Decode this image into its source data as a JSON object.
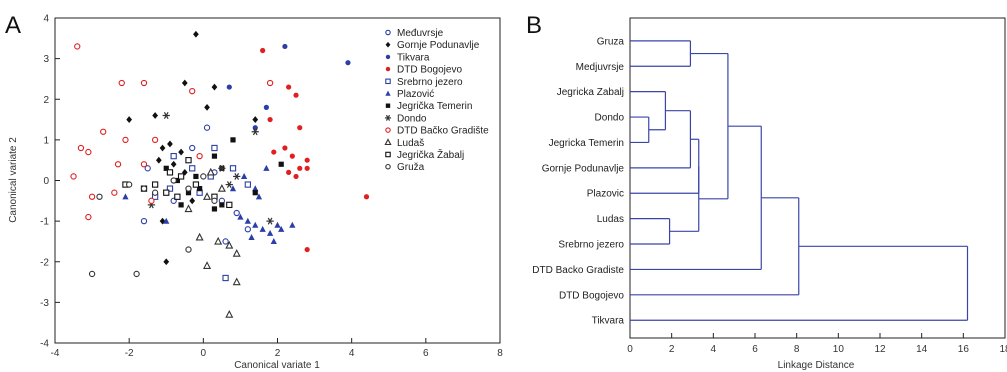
{
  "figure": {
    "panel_a_letter": "A",
    "panel_b_letter": "B"
  },
  "chart_data": [
    {
      "type": "scatter",
      "panel": "A",
      "xlabel": "Canonical variate 1",
      "ylabel": "Canonical variate 2",
      "xlim": [
        -4,
        8
      ],
      "ylim": [
        -4,
        4
      ],
      "xticks": [
        -4,
        -2,
        0,
        2,
        4,
        6,
        8
      ],
      "yticks": [
        -4,
        -3,
        -2,
        -1,
        0,
        1,
        2,
        3,
        4
      ],
      "grid": false,
      "legend_position": "top-right",
      "series": [
        {
          "name": "Međuvrsje",
          "color": "#2b3fa8",
          "marker": "circle-open",
          "points": [
            [
              -1.6,
              -1.0
            ],
            [
              -1.5,
              0.3
            ],
            [
              -0.3,
              0.8
            ],
            [
              0.1,
              1.3
            ],
            [
              0.6,
              -1.5
            ],
            [
              0.9,
              -0.8
            ],
            [
              0.5,
              -0.5
            ],
            [
              1.2,
              -1.2
            ],
            [
              -0.8,
              -0.5
            ],
            [
              0.3,
              0.2
            ]
          ]
        },
        {
          "name": "Gornje Podunavlje",
          "color": "#111111",
          "marker": "diamond",
          "points": [
            [
              -0.2,
              3.6
            ],
            [
              -1.3,
              1.6
            ],
            [
              -0.5,
              2.4
            ],
            [
              0.3,
              2.3
            ],
            [
              -2.0,
              1.5
            ],
            [
              0.1,
              1.8
            ],
            [
              1.4,
              1.5
            ],
            [
              -1.1,
              0.8
            ],
            [
              -1.2,
              0.5
            ],
            [
              -0.9,
              0.9
            ],
            [
              -0.6,
              0.7
            ],
            [
              -0.8,
              0.4
            ],
            [
              -1.1,
              -1.0
            ],
            [
              -1.0,
              -2.0
            ],
            [
              -0.5,
              0.2
            ],
            [
              -0.3,
              -0.5
            ]
          ]
        },
        {
          "name": "Tikvara",
          "color": "#2b3fa8",
          "marker": "circle-filled",
          "points": [
            [
              2.2,
              3.3
            ],
            [
              3.9,
              2.9
            ],
            [
              0.7,
              2.3
            ],
            [
              1.7,
              1.8
            ],
            [
              1.4,
              1.3
            ]
          ]
        },
        {
          "name": "DTD Bogojevo",
          "color": "#e02020",
          "marker": "circle-filled",
          "points": [
            [
              1.6,
              3.2
            ],
            [
              2.3,
              2.3
            ],
            [
              2.5,
              2.1
            ],
            [
              1.8,
              1.5
            ],
            [
              2.6,
              1.3
            ],
            [
              2.2,
              0.8
            ],
            [
              2.4,
              0.6
            ],
            [
              2.6,
              0.3
            ],
            [
              2.8,
              0.5
            ],
            [
              2.5,
              0.1
            ],
            [
              2.8,
              0.3
            ],
            [
              2.3,
              0.2
            ],
            [
              4.4,
              -0.4
            ],
            [
              2.8,
              -1.7
            ],
            [
              1.9,
              0.7
            ]
          ]
        },
        {
          "name": "Srebrno jezero",
          "color": "#2b3fa8",
          "marker": "square-open",
          "points": [
            [
              -0.8,
              0.6
            ],
            [
              -0.3,
              0.3
            ],
            [
              0.2,
              0.1
            ],
            [
              -0.9,
              -0.2
            ],
            [
              0.6,
              -2.4
            ],
            [
              0.3,
              0.8
            ],
            [
              -0.1,
              -0.3
            ],
            [
              0.8,
              0.3
            ],
            [
              1.2,
              -0.1
            ],
            [
              -1.3,
              -0.4
            ]
          ]
        },
        {
          "name": "Plazović",
          "color": "#2b3fa8",
          "marker": "triangle-filled",
          "points": [
            [
              1.0,
              -0.9
            ],
            [
              1.2,
              -1.0
            ],
            [
              1.4,
              -1.1
            ],
            [
              1.6,
              -1.2
            ],
            [
              1.8,
              -1.3
            ],
            [
              2.0,
              -1.1
            ],
            [
              1.5,
              -0.4
            ],
            [
              1.9,
              -1.5
            ],
            [
              2.1,
              -1.2
            ],
            [
              1.3,
              -1.4
            ],
            [
              1.1,
              0.1
            ],
            [
              1.4,
              -0.2
            ],
            [
              1.7,
              0.3
            ],
            [
              0.8,
              -0.2
            ],
            [
              -2.1,
              -0.4
            ],
            [
              2.4,
              -1.1
            ],
            [
              -1.0,
              -1.0
            ]
          ]
        },
        {
          "name": "Jegrička Temerin",
          "color": "#111111",
          "marker": "square-filled",
          "points": [
            [
              -1.0,
              0.3
            ],
            [
              -0.7,
              0.0
            ],
            [
              -0.4,
              -0.3
            ],
            [
              0.3,
              0.6
            ],
            [
              0.5,
              0.3
            ],
            [
              0.8,
              1.0
            ],
            [
              0.3,
              -0.7
            ],
            [
              -0.1,
              -0.2
            ],
            [
              -0.6,
              -0.6
            ],
            [
              2.1,
              0.4
            ],
            [
              1.4,
              -0.3
            ],
            [
              0.5,
              -0.6
            ],
            [
              -0.2,
              0.1
            ]
          ]
        },
        {
          "name": "Dondo",
          "color": "#333333",
          "marker": "asterisk",
          "points": [
            [
              -1.0,
              1.6
            ],
            [
              1.4,
              1.2
            ],
            [
              0.5,
              0.3
            ],
            [
              -1.4,
              -0.6
            ],
            [
              1.8,
              -1.0
            ],
            [
              0.9,
              0.1
            ],
            [
              0.7,
              -0.1
            ]
          ]
        },
        {
          "name": "DTD Bačko Gradište",
          "color": "#e02020",
          "marker": "circle-open",
          "points": [
            [
              -3.4,
              3.3
            ],
            [
              -2.2,
              2.4
            ],
            [
              -1.6,
              2.4
            ],
            [
              -0.3,
              2.2
            ],
            [
              1.8,
              2.4
            ],
            [
              -2.7,
              1.2
            ],
            [
              -2.1,
              1.0
            ],
            [
              -1.3,
              1.0
            ],
            [
              -3.3,
              0.8
            ],
            [
              -3.1,
              0.7
            ],
            [
              -2.3,
              0.4
            ],
            [
              -1.6,
              0.4
            ],
            [
              -3.5,
              0.1
            ],
            [
              -3.0,
              -0.4
            ],
            [
              -3.1,
              -0.9
            ],
            [
              -2.4,
              -0.3
            ],
            [
              -1.4,
              -0.5
            ],
            [
              -0.1,
              0.6
            ]
          ]
        },
        {
          "name": "Ludaš",
          "color": "#333333",
          "marker": "triangle-open",
          "points": [
            [
              -0.1,
              -1.4
            ],
            [
              0.4,
              -1.5
            ],
            [
              0.7,
              -1.6
            ],
            [
              0.1,
              -2.1
            ],
            [
              0.9,
              -2.5
            ],
            [
              0.7,
              -3.3
            ],
            [
              0.9,
              -1.8
            ],
            [
              -0.4,
              -0.7
            ],
            [
              0.1,
              -0.4
            ],
            [
              0.5,
              -0.2
            ],
            [
              0.2,
              0.2
            ]
          ]
        },
        {
          "name": "Jegrička Žabalj",
          "color": "#111111",
          "marker": "square-open",
          "points": [
            [
              -2.1,
              -0.1
            ],
            [
              -1.6,
              -0.2
            ],
            [
              -1.0,
              -0.3
            ],
            [
              -0.6,
              0.1
            ],
            [
              -0.2,
              -0.1
            ],
            [
              0.3,
              -0.4
            ],
            [
              0.7,
              -0.6
            ],
            [
              -0.9,
              0.2
            ],
            [
              -1.3,
              -0.1
            ],
            [
              -0.4,
              0.5
            ],
            [
              -0.7,
              -0.4
            ]
          ]
        },
        {
          "name": "Gruža",
          "color": "#333333",
          "marker": "circle-open",
          "points": [
            [
              -3.0,
              -2.3
            ],
            [
              -1.8,
              -2.3
            ],
            [
              -0.4,
              -1.7
            ],
            [
              -2.8,
              -0.4
            ],
            [
              -2.0,
              -0.1
            ],
            [
              -1.3,
              -0.3
            ],
            [
              -0.8,
              0.0
            ],
            [
              -0.4,
              -0.2
            ],
            [
              0.0,
              0.1
            ],
            [
              0.3,
              -0.5
            ],
            [
              -1.6,
              -0.2
            ]
          ]
        }
      ]
    },
    {
      "type": "dendrogram",
      "panel": "B",
      "xlabel": "Linkage Distance",
      "xlim": [
        0,
        18
      ],
      "xticks": [
        0,
        2,
        4,
        6,
        8,
        10,
        12,
        14,
        16,
        18
      ],
      "color": "#3b45a8",
      "leaves": [
        "Gruza",
        "Medjuvrsje",
        "Jegricka Zabalj",
        "Dondo",
        "Jegricka Temerin",
        "Gornje Podunavlje",
        "Plazovic",
        "Ludas",
        "Srebrno jezero",
        "DTD Backo Gradiste",
        "DTD Bogojevo",
        "Tikvara"
      ],
      "merges": [
        {
          "a": "Dondo",
          "b": "Jegricka Temerin",
          "height": 0.9
        },
        {
          "a": "Jegricka Zabalj",
          "b": "m0",
          "height": 1.7
        },
        {
          "a": "m1",
          "b": "Gornje Podunavlje",
          "height": 2.9
        },
        {
          "a": "Ludas",
          "b": "Srebrno jezero",
          "height": 1.9
        },
        {
          "a": "m2",
          "b": "Plazovic",
          "height": 3.3
        },
        {
          "a": "m4",
          "b": "m3",
          "height": 3.3
        },
        {
          "a": "Gruza",
          "b": "Medjuvrsje",
          "height": 2.9
        },
        {
          "a": "m6",
          "b": "m5",
          "height": 4.7
        },
        {
          "a": "m7",
          "b": "DTD Backo Gradiste",
          "height": 6.3
        },
        {
          "a": "m8",
          "b": "DTD Bogojevo",
          "height": 8.1
        },
        {
          "a": "m9",
          "b": "Tikvara",
          "height": 16.2
        }
      ]
    }
  ]
}
